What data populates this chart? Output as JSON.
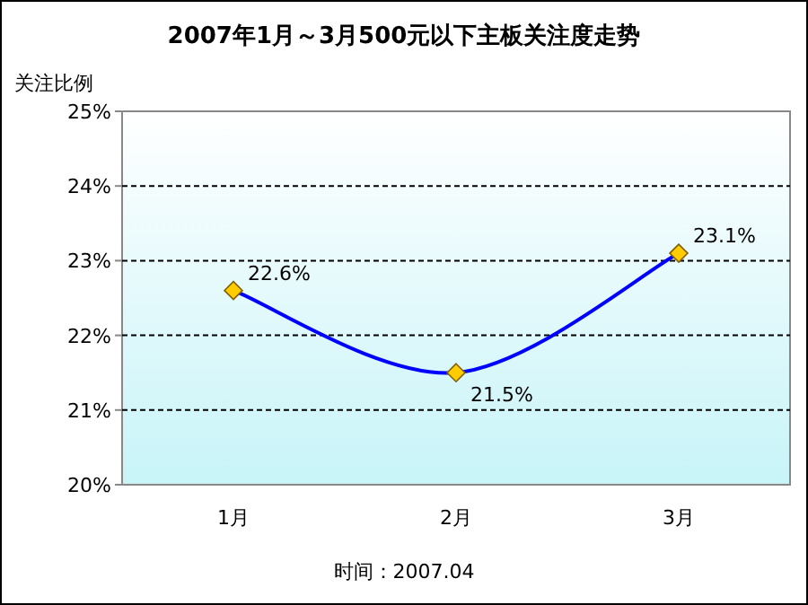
{
  "chart_data": {
    "type": "line",
    "title": "2007年1月～3月500元以下主板关注度走势",
    "ylabel": "关注比例",
    "categories": [
      "1月",
      "2月",
      "3月"
    ],
    "series": [
      {
        "color": "#0000ff",
        "values": [
          22.6,
          21.5,
          23.1
        ],
        "value_labels": [
          "22.6%",
          "21.5%",
          "23.1%"
        ]
      }
    ],
    "marker": "diamond",
    "line_style": "solid",
    "grid": "y",
    "ylim": [
      20,
      25
    ],
    "yticks": [
      {
        "value": 20,
        "label": "20%"
      },
      {
        "value": 21,
        "label": "21%"
      },
      {
        "value": 22,
        "label": "22%"
      },
      {
        "value": 23,
        "label": "23%"
      },
      {
        "value": 24,
        "label": "24%"
      },
      {
        "value": 25,
        "label": "25%"
      }
    ],
    "annotations": [
      "时间：2007.04"
    ]
  }
}
